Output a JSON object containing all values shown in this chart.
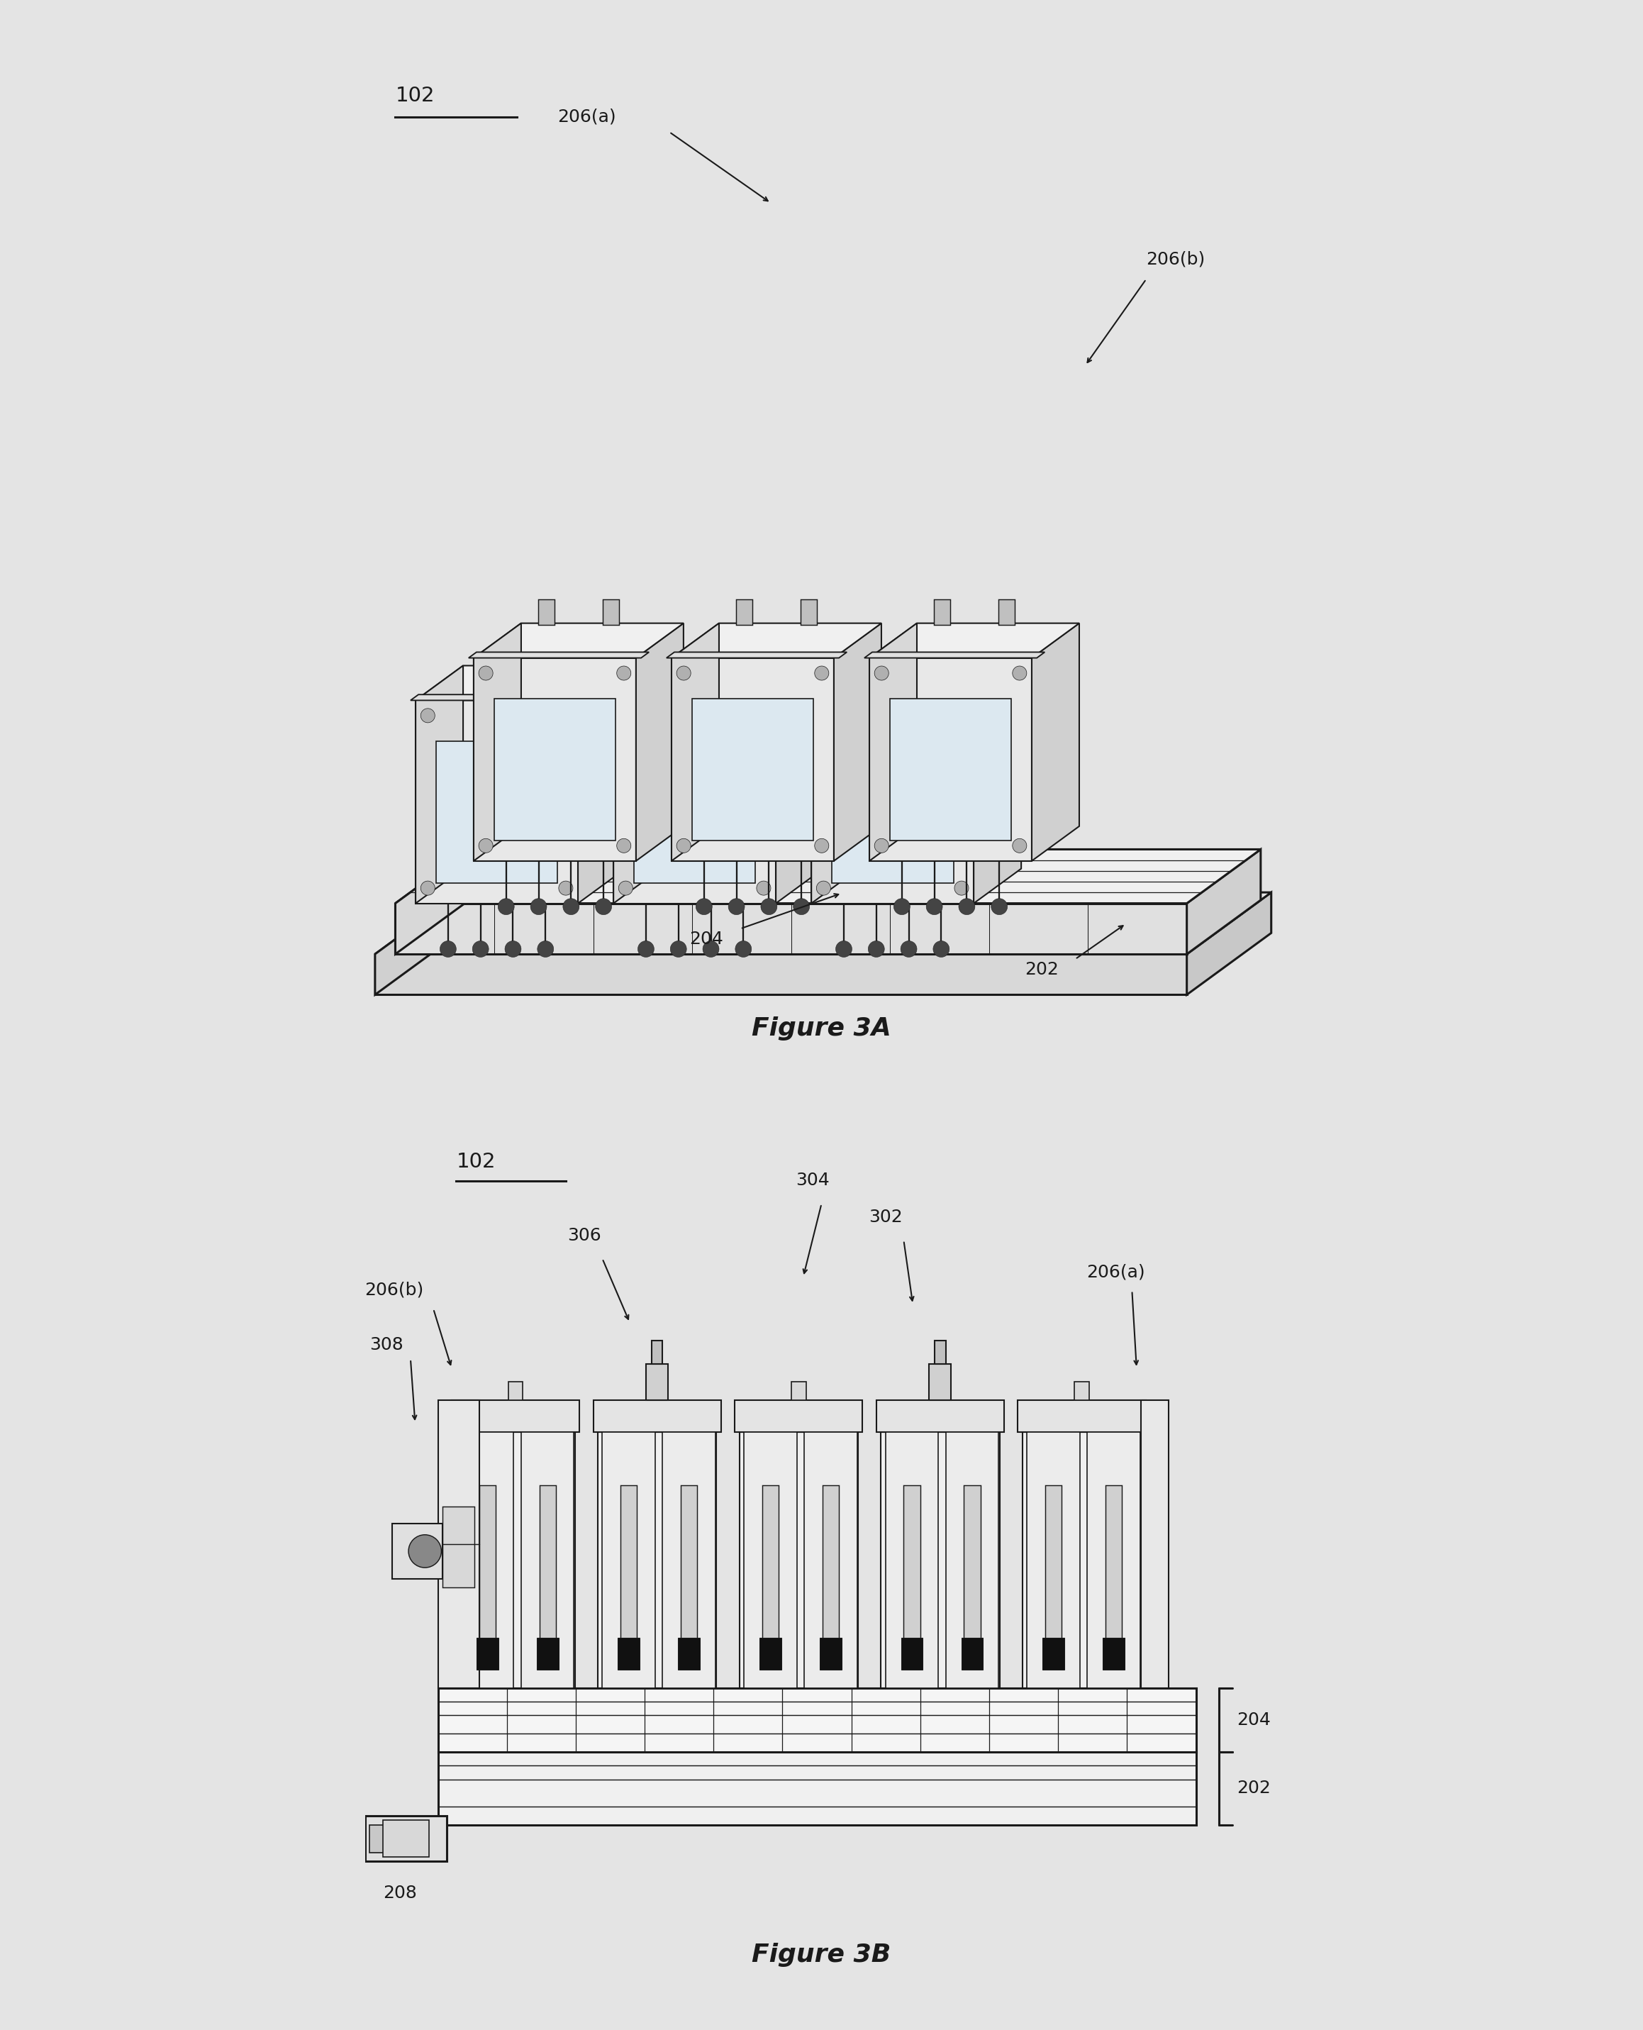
{
  "background_color": "#e4e4e4",
  "fig_width": 23.17,
  "fig_height": 28.62,
  "title_3A": "Figure 3A",
  "title_3B": "Figure 3B",
  "labels": {
    "102_top": "102",
    "206a_top": "206(a)",
    "206b_top": "206(b)",
    "204_top": "204",
    "202_top": "202",
    "102_bot": "102",
    "206a_bot": "206(a)",
    "206b_bot": "206(b)",
    "204_bot": "204",
    "202_bot": "202",
    "302": "302",
    "304": "304",
    "306": "306",
    "308": "308",
    "208": "208"
  },
  "line_color": "#1a1a1a",
  "line_width": 1.5,
  "label_fontsize": 18,
  "caption_fontsize": 26
}
